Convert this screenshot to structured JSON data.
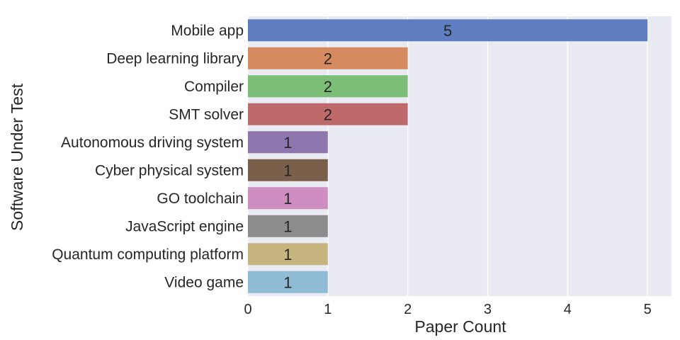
{
  "chart_data": {
    "type": "bar",
    "orientation": "horizontal",
    "categories": [
      "Mobile app",
      "Deep learning library",
      "Compiler",
      "SMT solver",
      "Autonomous driving system",
      "Cyber physical system",
      "GO toolchain",
      "JavaScript engine",
      "Quantum computing platform",
      "Video game"
    ],
    "values": [
      5,
      2,
      2,
      2,
      1,
      1,
      1,
      1,
      1,
      1
    ],
    "data_labels": [
      "5",
      "2",
      "2",
      "2",
      "1",
      "1",
      "1",
      "1",
      "1",
      "1"
    ],
    "colors": [
      "#5F7EC2",
      "#D58A5F",
      "#7CBE78",
      "#BF6A6A",
      "#8E76AE",
      "#7A5F4B",
      "#CE8EC2",
      "#8C8C8C",
      "#C6B57E",
      "#8FBCD4"
    ],
    "xlabel": "Paper Count",
    "ylabel": "Software Under Test",
    "xlim": [
      0,
      5.3
    ],
    "xticks": [
      0,
      1,
      2,
      3,
      4,
      5
    ],
    "xtick_labels": [
      "0",
      "1",
      "2",
      "3",
      "4",
      "5"
    ],
    "grid": true,
    "background_color": "#EAEAF2",
    "grid_color": "#FFFFFF"
  }
}
